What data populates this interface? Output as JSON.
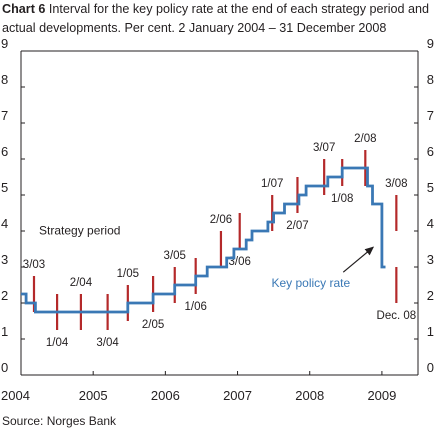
{
  "title_bold": "Chart 6",
  "title": "Interval for the key policy rate at the end of each strategy period and actual developments. Per cent. 2 January 2004 – 31 December 2008",
  "source": "Source: Norges Bank",
  "chart_data": {
    "type": "line",
    "x_axis": {
      "min": 2004,
      "max": 2009.5,
      "ticks": [
        "2004",
        "2005",
        "2006",
        "2007",
        "2008",
        "2009"
      ]
    },
    "y_axis": {
      "min": 0,
      "max": 9,
      "ticks": [
        "0",
        "1",
        "2",
        "3",
        "4",
        "5",
        "6",
        "7",
        "8",
        "9"
      ],
      "both_sides": true
    },
    "grid": false,
    "series": [
      {
        "name": "Key policy rate",
        "color": "#3a78b5",
        "steps": [
          {
            "x": 2004.0,
            "y": 2.25
          },
          {
            "x": 2004.07,
            "y": 2.0
          },
          {
            "x": 2004.2,
            "y": 1.75
          },
          {
            "x": 2005.48,
            "y": 2.0
          },
          {
            "x": 2005.83,
            "y": 2.25
          },
          {
            "x": 2006.13,
            "y": 2.5
          },
          {
            "x": 2006.42,
            "y": 2.75
          },
          {
            "x": 2006.58,
            "y": 3.0
          },
          {
            "x": 2006.85,
            "y": 3.25
          },
          {
            "x": 2006.95,
            "y": 3.5
          },
          {
            "x": 2007.12,
            "y": 3.75
          },
          {
            "x": 2007.2,
            "y": 4.0
          },
          {
            "x": 2007.42,
            "y": 4.25
          },
          {
            "x": 2007.5,
            "y": 4.5
          },
          {
            "x": 2007.65,
            "y": 4.75
          },
          {
            "x": 2007.85,
            "y": 5.0
          },
          {
            "x": 2007.95,
            "y": 5.25
          },
          {
            "x": 2008.25,
            "y": 5.5
          },
          {
            "x": 2008.45,
            "y": 5.75
          },
          {
            "x": 2008.8,
            "y": 5.25
          },
          {
            "x": 2008.87,
            "y": 4.75
          },
          {
            "x": 2009.0,
            "y": 3.0
          },
          {
            "x": 2009.05,
            "y": 3.0
          }
        ]
      }
    ],
    "intervals": {
      "name": "Strategy period",
      "color": "#b4292a",
      "items": [
        {
          "label": "3/03",
          "x": 2004.18,
          "low": 1.75,
          "high": 2.75,
          "label_side": "above"
        },
        {
          "label": "1/04",
          "x": 2004.5,
          "low": 1.25,
          "high": 2.25,
          "label_side": "below"
        },
        {
          "label": "2/04",
          "x": 2004.83,
          "low": 1.25,
          "high": 2.25,
          "label_side": "above"
        },
        {
          "label": "3/04",
          "x": 2005.2,
          "low": 1.25,
          "high": 2.25,
          "label_side": "below"
        },
        {
          "label": "1/05",
          "x": 2005.48,
          "low": 1.5,
          "high": 2.5,
          "label_side": "above"
        },
        {
          "label": "2/05",
          "x": 2005.83,
          "low": 1.75,
          "high": 2.75,
          "label_side": "below"
        },
        {
          "label": "3/05",
          "x": 2006.13,
          "low": 2.0,
          "high": 3.0,
          "label_side": "above"
        },
        {
          "label": "1/06",
          "x": 2006.42,
          "low": 2.25,
          "high": 3.25,
          "label_side": "below"
        },
        {
          "label": "2/06",
          "x": 2006.77,
          "low": 3.0,
          "high": 4.0,
          "label_side": "above"
        },
        {
          "label": "3/06",
          "x": 2007.03,
          "low": 3.5,
          "high": 4.5,
          "label_side": "below"
        },
        {
          "label": "1/07",
          "x": 2007.48,
          "low": 4.0,
          "high": 5.0,
          "label_side": "above"
        },
        {
          "label": "2/07",
          "x": 2007.83,
          "low": 4.5,
          "high": 5.5,
          "label_side": "below"
        },
        {
          "label": "3/07",
          "x": 2008.2,
          "low": 5.0,
          "high": 6.0,
          "label_side": "above"
        },
        {
          "label": "1/08",
          "x": 2008.45,
          "low": 5.25,
          "high": 6.0,
          "label_side": "below"
        },
        {
          "label": "2/08",
          "x": 2008.77,
          "low": 5.25,
          "high": 6.25,
          "label_side": "above"
        },
        {
          "label": "3/08",
          "x": 2009.2,
          "low": 4.0,
          "high": 5.0,
          "label_side": "above"
        },
        {
          "label": "Dec. 08",
          "x": 2009.2,
          "low": 2.0,
          "high": 3.0,
          "label_side": "below"
        }
      ]
    },
    "annotations": [
      {
        "text": "Strategy period",
        "color": "#231f20",
        "at_x": 2004.25,
        "at_y": 3.9
      },
      {
        "text": "Key policy rate",
        "color": "#3a78b5",
        "at_x": 2007.47,
        "at_y": 2.45,
        "arrow_to": [
          2008.88,
          3.55
        ]
      }
    ]
  }
}
